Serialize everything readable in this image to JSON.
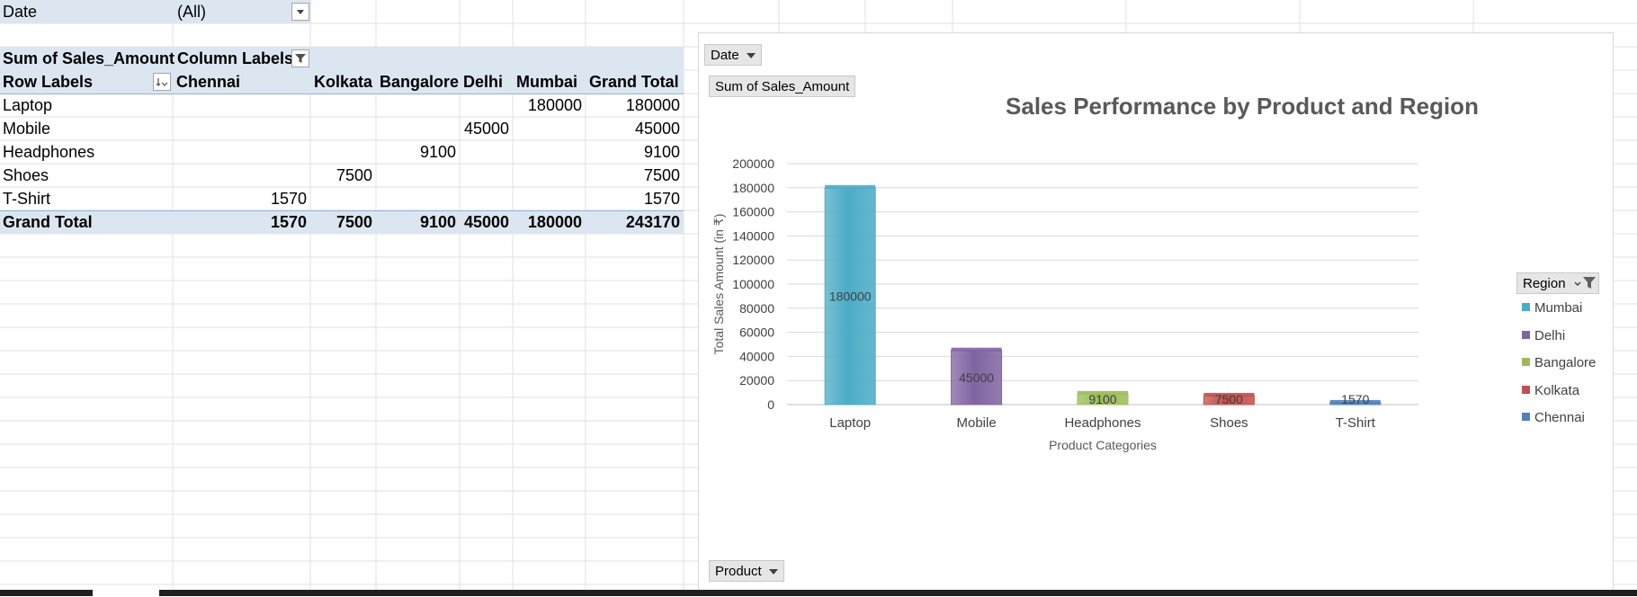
{
  "filter": {
    "label": "Date",
    "value": "(All)"
  },
  "pivot": {
    "values_header": "Sum of Sales_Amount",
    "column_labels": "Column Labels",
    "row_labels": "Row Labels",
    "columns": [
      "Chennai",
      "Kolkata",
      "Bangalore",
      "Delhi",
      "Mumbai",
      "Grand Total"
    ],
    "rows": [
      {
        "label": "Laptop",
        "cells": [
          "",
          "",
          "",
          "",
          "180000",
          "180000"
        ]
      },
      {
        "label": "Mobile",
        "cells": [
          "",
          "",
          "",
          "45000",
          "",
          "45000"
        ]
      },
      {
        "label": "Headphones",
        "cells": [
          "",
          "",
          "9100",
          "",
          "",
          "9100"
        ]
      },
      {
        "label": "Shoes",
        "cells": [
          "",
          "7500",
          "",
          "",
          "",
          "7500"
        ]
      },
      {
        "label": "T-Shirt",
        "cells": [
          "1570",
          "",
          "",
          "",
          "",
          "1570"
        ]
      }
    ],
    "grand_total": {
      "label": "Grand Total",
      "cells": [
        "1570",
        "7500",
        "9100",
        "45000",
        "180000",
        "243170"
      ]
    }
  },
  "chart_buttons": {
    "date": "Date",
    "value": "Sum of Sales_Amount",
    "product": "Product",
    "region": "Region"
  },
  "chart_data": {
    "type": "bar",
    "title": "Sales Performance by Product and Region",
    "xlabel": "Product Categories",
    "ylabel": "Total Sales Amount (in ₹)",
    "categories": [
      "Laptop",
      "Mobile",
      "Headphones",
      "Shoes",
      "T-Shirt"
    ],
    "ylim": [
      0,
      200000
    ],
    "yticks": [
      0,
      20000,
      40000,
      60000,
      80000,
      100000,
      120000,
      140000,
      160000,
      180000,
      200000
    ],
    "grid": true,
    "legend_position": "right",
    "series": [
      {
        "name": "Mumbai",
        "color": "#4bacc6",
        "values": [
          180000,
          0,
          0,
          0,
          0
        ]
      },
      {
        "name": "Delhi",
        "color": "#8064a2",
        "values": [
          0,
          45000,
          0,
          0,
          0
        ]
      },
      {
        "name": "Bangalore",
        "color": "#9bbb59",
        "values": [
          0,
          0,
          9100,
          0,
          0
        ]
      },
      {
        "name": "Kolkata",
        "color": "#c0504d",
        "values": [
          0,
          0,
          0,
          7500,
          0
        ]
      },
      {
        "name": "Chennai",
        "color": "#4f81bd",
        "values": [
          0,
          0,
          0,
          0,
          1570
        ]
      }
    ],
    "data_labels": [
      "180000",
      "45000",
      "9100",
      "7500",
      "1570"
    ]
  }
}
